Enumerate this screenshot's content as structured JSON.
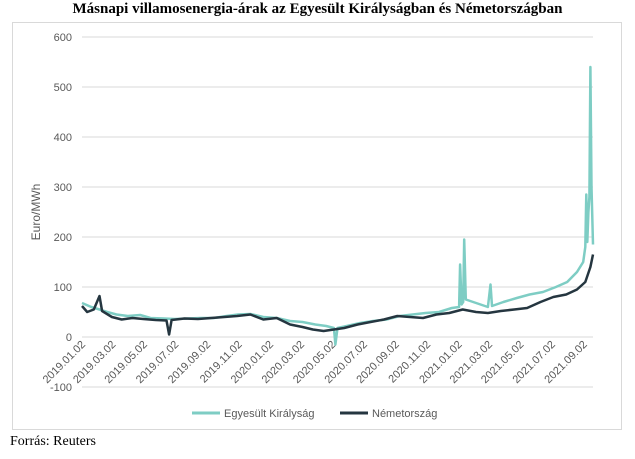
{
  "chart_data": {
    "type": "line",
    "title": "Másnapi villamosenergia-árak az Egyesült Királyságban és Németországban",
    "ylabel": "Euro/MWh",
    "xlabel": "",
    "ylim": [
      -100,
      600
    ],
    "yticks": [
      -100,
      0,
      100,
      200,
      300,
      400,
      500,
      600
    ],
    "xlim": [
      "2019-01-02",
      "2021-09-20"
    ],
    "xtick_labels": [
      "2019.01.02",
      "2019.03.02",
      "2019.05.02",
      "2019.07.02",
      "2019.09.02",
      "2019.11.02",
      "2020.01.02",
      "2020.03.02",
      "2020.05.02",
      "2020.07.02",
      "2020.09.02",
      "2020.11.02",
      "2021.01.02",
      "2021.03.02",
      "2021.05.02",
      "2021.07.02",
      "2021.09.02"
    ],
    "grid": "horizontal",
    "legend_position": "bottom",
    "series": [
      {
        "name": "Egyesült Királyság",
        "color": "#7ecdc4",
        "points": [
          [
            "2019-01-02",
            68
          ],
          [
            "2019-01-20",
            60
          ],
          [
            "2019-02-05",
            55
          ],
          [
            "2019-02-20",
            50
          ],
          [
            "2019-03-10",
            45
          ],
          [
            "2019-04-01",
            42
          ],
          [
            "2019-04-25",
            44
          ],
          [
            "2019-05-15",
            38
          ],
          [
            "2019-06-10",
            37
          ],
          [
            "2019-07-01",
            36
          ],
          [
            "2019-07-25",
            37
          ],
          [
            "2019-08-20",
            38
          ],
          [
            "2019-09-15",
            38
          ],
          [
            "2019-10-10",
            42
          ],
          [
            "2019-11-01",
            45
          ],
          [
            "2019-11-25",
            46
          ],
          [
            "2019-12-20",
            40
          ],
          [
            "2020-01-15",
            38
          ],
          [
            "2020-02-10",
            32
          ],
          [
            "2020-03-05",
            30
          ],
          [
            "2020-03-30",
            25
          ],
          [
            "2020-04-20",
            22
          ],
          [
            "2020-05-05",
            18
          ],
          [
            "2020-05-08",
            -15
          ],
          [
            "2020-05-12",
            18
          ],
          [
            "2020-05-30",
            22
          ],
          [
            "2020-06-25",
            28
          ],
          [
            "2020-07-20",
            32
          ],
          [
            "2020-08-15",
            35
          ],
          [
            "2020-09-10",
            42
          ],
          [
            "2020-10-05",
            45
          ],
          [
            "2020-10-30",
            48
          ],
          [
            "2020-11-25",
            50
          ],
          [
            "2020-12-20",
            58
          ],
          [
            "2021-01-03",
            60
          ],
          [
            "2021-01-05",
            145
          ],
          [
            "2021-01-08",
            65
          ],
          [
            "2021-01-11",
            70
          ],
          [
            "2021-01-13",
            195
          ],
          [
            "2021-01-16",
            75
          ],
          [
            "2021-02-05",
            68
          ],
          [
            "2021-02-28",
            60
          ],
          [
            "2021-03-05",
            105
          ],
          [
            "2021-03-08",
            62
          ],
          [
            "2021-03-30",
            70
          ],
          [
            "2021-04-25",
            78
          ],
          [
            "2021-05-20",
            85
          ],
          [
            "2021-06-15",
            90
          ],
          [
            "2021-07-10",
            100
          ],
          [
            "2021-08-01",
            110
          ],
          [
            "2021-08-20",
            130
          ],
          [
            "2021-09-01",
            150
          ],
          [
            "2021-09-05",
            180
          ],
          [
            "2021-09-07",
            285
          ],
          [
            "2021-09-09",
            190
          ],
          [
            "2021-09-11",
            250
          ],
          [
            "2021-09-13",
            280
          ],
          [
            "2021-09-15",
            540
          ],
          [
            "2021-09-17",
            300
          ],
          [
            "2021-09-20",
            185
          ]
        ]
      },
      {
        "name": "Németország",
        "color": "#253640",
        "points": [
          [
            "2019-01-02",
            62
          ],
          [
            "2019-01-12",
            50
          ],
          [
            "2019-01-25",
            55
          ],
          [
            "2019-02-05",
            82
          ],
          [
            "2019-02-10",
            52
          ],
          [
            "2019-03-01",
            40
          ],
          [
            "2019-03-20",
            35
          ],
          [
            "2019-04-10",
            38
          ],
          [
            "2019-05-01",
            36
          ],
          [
            "2019-05-25",
            34
          ],
          [
            "2019-06-15",
            33
          ],
          [
            "2019-06-20",
            5
          ],
          [
            "2019-06-25",
            34
          ],
          [
            "2019-07-20",
            37
          ],
          [
            "2019-08-15",
            36
          ],
          [
            "2019-09-10",
            38
          ],
          [
            "2019-10-05",
            40
          ],
          [
            "2019-10-30",
            42
          ],
          [
            "2019-11-25",
            45
          ],
          [
            "2019-12-20",
            35
          ],
          [
            "2020-01-15",
            38
          ],
          [
            "2020-02-10",
            25
          ],
          [
            "2020-03-05",
            20
          ],
          [
            "2020-03-25",
            15
          ],
          [
            "2020-04-15",
            12
          ],
          [
            "2020-05-05",
            15
          ],
          [
            "2020-05-25",
            18
          ],
          [
            "2020-06-20",
            25
          ],
          [
            "2020-07-15",
            30
          ],
          [
            "2020-08-10",
            35
          ],
          [
            "2020-09-05",
            42
          ],
          [
            "2020-09-30",
            40
          ],
          [
            "2020-10-25",
            38
          ],
          [
            "2020-11-20",
            45
          ],
          [
            "2020-12-15",
            48
          ],
          [
            "2021-01-10",
            55
          ],
          [
            "2021-02-05",
            50
          ],
          [
            "2021-02-28",
            48
          ],
          [
            "2021-03-25",
            52
          ],
          [
            "2021-04-20",
            55
          ],
          [
            "2021-05-15",
            58
          ],
          [
            "2021-06-10",
            70
          ],
          [
            "2021-07-05",
            80
          ],
          [
            "2021-07-30",
            85
          ],
          [
            "2021-08-20",
            95
          ],
          [
            "2021-09-05",
            110
          ],
          [
            "2021-09-15",
            140
          ],
          [
            "2021-09-20",
            165
          ]
        ]
      }
    ]
  },
  "source": "Forrás: Reuters"
}
